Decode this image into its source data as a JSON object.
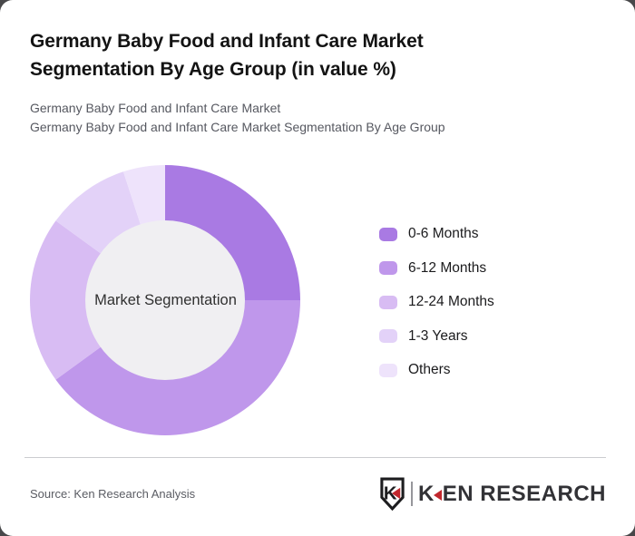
{
  "page": {
    "background": "#48484a",
    "card_background": "#ffffff"
  },
  "header": {
    "title": "Germany Baby Food and Infant Care Market Segmentation By Age Group (in value %)",
    "subtitle_line1": "Germany Baby Food and Infant Care Market",
    "subtitle_line2": "Germany Baby Food and Infant Care Market Segmentation By Age Group"
  },
  "chart_data": {
    "type": "pie",
    "subtype": "donut",
    "title": "Germany Baby Food and Infant Care Market Segmentation By Age Group (in value %)",
    "units": "value %",
    "center_label": "Market Segmentation",
    "start_angle_deg": 0,
    "direction": "clockwise",
    "inner_radius_ratio": 0.59,
    "hole_fill": "#f0eff2",
    "legend_position": "right",
    "series": [
      {
        "name": "0-6 Months",
        "value": 25,
        "color": "#a97ae3"
      },
      {
        "name": "6-12 Months",
        "value": 40,
        "color": "#bf97eb"
      },
      {
        "name": "12-24 Months",
        "value": 20,
        "color": "#d8bcf3"
      },
      {
        "name": "1-3 Years",
        "value": 10,
        "color": "#e3d2f8"
      },
      {
        "name": "Others",
        "value": 5,
        "color": "#eee3fb"
      }
    ]
  },
  "footer": {
    "source": "Source: Ken Research Analysis",
    "logo": {
      "emblem_letter": "K",
      "brand_k": "K",
      "brand_rest": "EN RESEARCH",
      "accent_red": "#c1272d",
      "outline_color": "#1d1d1f"
    }
  }
}
